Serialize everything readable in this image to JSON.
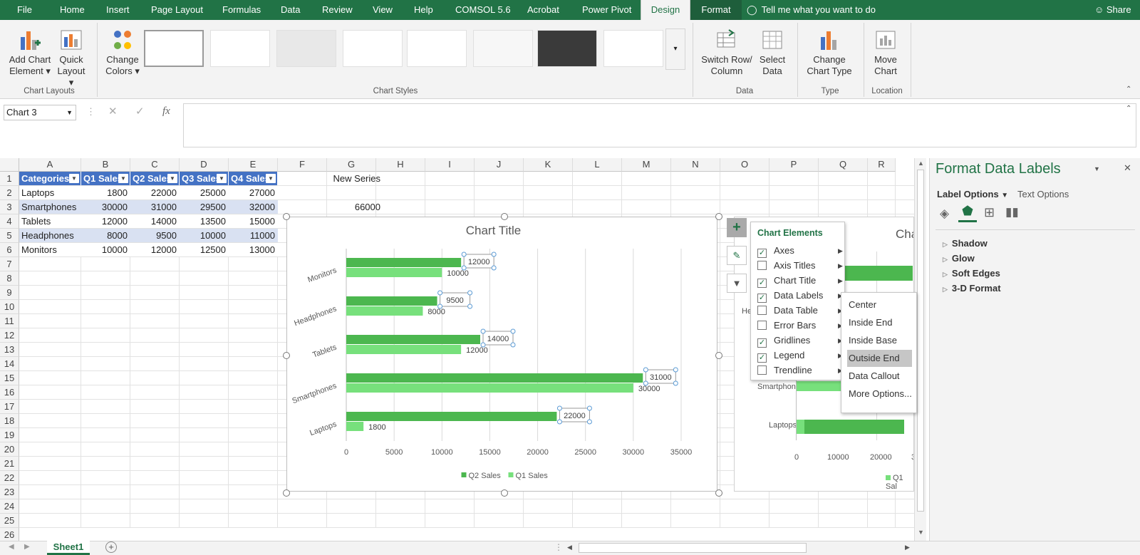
{
  "tabs": [
    "File",
    "Home",
    "Insert",
    "Page Layout",
    "Formulas",
    "Data",
    "Review",
    "View",
    "Help",
    "COMSOL 5.6",
    "Acrobat",
    "Power Pivot",
    "Design",
    "Format"
  ],
  "tell_me": "Tell me what you want to do",
  "share": "Share",
  "ribbon": {
    "add_chart_element": [
      "Add Chart",
      "Element"
    ],
    "quick_layout": [
      "Quick",
      "Layout"
    ],
    "change_colors": [
      "Change",
      "Colors"
    ],
    "switch_row_col": [
      "Switch Row/",
      "Column"
    ],
    "select_data": [
      "Select",
      "Data"
    ],
    "change_chart_type": [
      "Change",
      "Chart Type"
    ],
    "move_chart": [
      "Move",
      "Chart"
    ],
    "groups": {
      "chart_layouts": "Chart Layouts",
      "chart_styles": "Chart Styles",
      "data": "Data",
      "type": "Type",
      "location": "Location"
    }
  },
  "name_box": "Chart 3",
  "fx": "fx",
  "columns": [
    "A",
    "B",
    "C",
    "D",
    "E",
    "F",
    "G",
    "H",
    "I",
    "J",
    "K",
    "L",
    "M",
    "N",
    "O",
    "P",
    "Q",
    "R"
  ],
  "rows": [
    "1",
    "2",
    "3",
    "4",
    "5",
    "6",
    "7",
    "8",
    "9",
    "10",
    "11",
    "12",
    "13",
    "14",
    "15",
    "16",
    "17",
    "18",
    "19",
    "20",
    "21",
    "22",
    "23",
    "24",
    "25",
    "26"
  ],
  "table": {
    "headers": [
      "Categories",
      "Q1 Sales",
      "Q2 Sales",
      "Q3 Sales",
      "Q4 Sales"
    ],
    "rows": [
      [
        "Laptops",
        "1800",
        "22000",
        "25000",
        "27000"
      ],
      [
        "Smartphones",
        "30000",
        "31000",
        "29500",
        "32000"
      ],
      [
        "Tablets",
        "12000",
        "14000",
        "13500",
        "15000"
      ],
      [
        "Headphones",
        "8000",
        "9500",
        "10000",
        "11000"
      ],
      [
        "Monitors",
        "10000",
        "12000",
        "12500",
        "13000"
      ]
    ]
  },
  "g1": "New Series",
  "g3": "66000",
  "colors": {
    "q2": "#4cb74f",
    "q1": "#77e07c",
    "excel_green": "#217346"
  },
  "chart_data": {
    "type": "bar",
    "title": "Chart Title",
    "categories": [
      "Laptops",
      "Smartphones",
      "Tablets",
      "Headphones",
      "Monitors"
    ],
    "series": [
      {
        "name": "Q2 Sales",
        "values": [
          22000,
          31000,
          14000,
          9500,
          12000
        ]
      },
      {
        "name": "Q1 Sales",
        "values": [
          1800,
          30000,
          12000,
          8000,
          10000
        ]
      }
    ],
    "xlim": [
      0,
      35000
    ],
    "xticks": [
      "0",
      "5000",
      "10000",
      "15000",
      "20000",
      "25000",
      "30000",
      "35000"
    ],
    "grid": true,
    "legend": "bottom"
  },
  "chart_elements": {
    "title": "Chart Elements",
    "items": [
      {
        "label": "Axes",
        "checked": true
      },
      {
        "label": "Axis Titles",
        "checked": false
      },
      {
        "label": "Chart Title",
        "checked": true
      },
      {
        "label": "Data Labels",
        "checked": true
      },
      {
        "label": "Data Table",
        "checked": false
      },
      {
        "label": "Error Bars",
        "checked": false
      },
      {
        "label": "Gridlines",
        "checked": true
      },
      {
        "label": "Legend",
        "checked": true
      },
      {
        "label": "Trendline",
        "checked": false
      }
    ]
  },
  "data_label_options": [
    "Center",
    "Inside End",
    "Inside Base",
    "Outside End",
    "Data Callout",
    "More Options..."
  ],
  "pane": {
    "title": "Format Data Labels",
    "label_options": "Label Options",
    "text_options": "Text Options",
    "sections": [
      "Shadow",
      "Glow",
      "Soft Edges",
      "3-D Format"
    ]
  },
  "chart2": {
    "title": "Cha",
    "labels": [
      "He",
      "Smartphones",
      "Laptops"
    ],
    "ticks": [
      "0",
      "10000",
      "20000",
      "3"
    ],
    "legend": "Q1 Sal"
  },
  "sheet": "Sheet1"
}
